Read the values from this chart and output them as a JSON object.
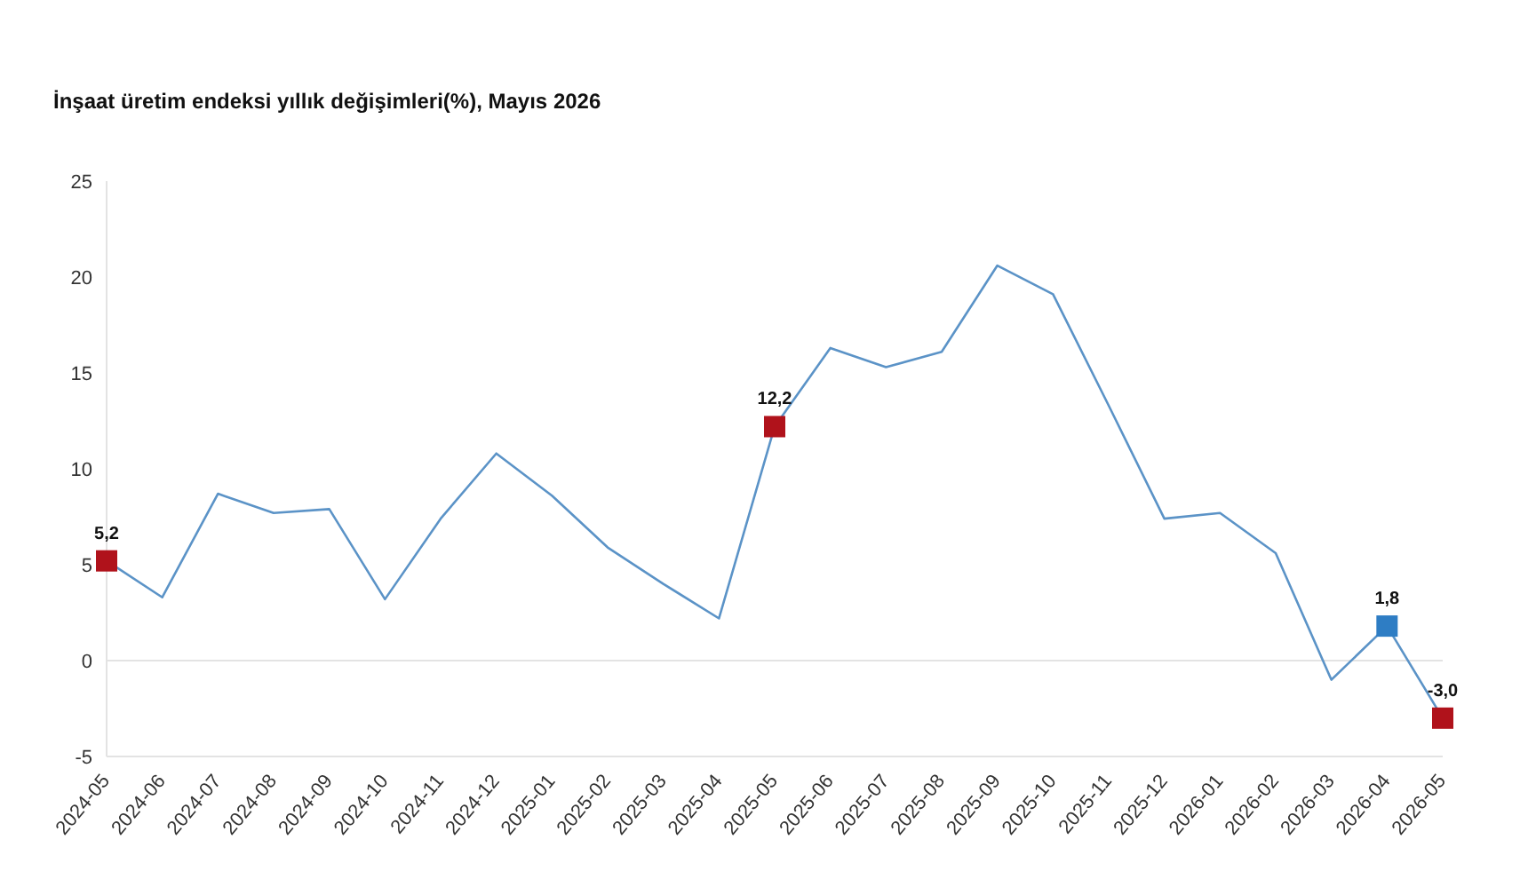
{
  "chart_data": {
    "type": "line",
    "title": "İnşaat üretim endeksi yıllık değişimleri(%), Mayıs 2026",
    "categories": [
      "2024-05",
      "2024-06",
      "2024-07",
      "2024-08",
      "2024-09",
      "2024-10",
      "2024-11",
      "2024-12",
      "2025-01",
      "2025-02",
      "2025-03",
      "2025-04",
      "2025-05",
      "2025-06",
      "2025-07",
      "2025-08",
      "2025-09",
      "2025-10",
      "2025-11",
      "2025-12",
      "2026-01",
      "2026-02",
      "2026-03",
      "2026-04",
      "2026-05"
    ],
    "series": [
      {
        "color": "#5b93c7",
        "marker": "none",
        "values": [
          5.2,
          3.3,
          8.7,
          7.7,
          7.9,
          3.2,
          7.4,
          10.8,
          8.6,
          5.9,
          4.0,
          2.2,
          12.2,
          16.3,
          15.3,
          16.1,
          20.6,
          19.1,
          13.3,
          7.4,
          7.7,
          5.6,
          -1.0,
          1.8,
          -3.0
        ]
      },
      {
        "type": "scatter",
        "marker": "square",
        "values": [
          5.2,
          null,
          null,
          null,
          null,
          null,
          null,
          null,
          null,
          null,
          null,
          null,
          12.2,
          null,
          null,
          null,
          null,
          null,
          null,
          null,
          null,
          null,
          null,
          1.8,
          -3.0
        ],
        "colors": [
          "#b0121b",
          null,
          null,
          null,
          null,
          null,
          null,
          null,
          null,
          null,
          null,
          null,
          "#b0121b",
          null,
          null,
          null,
          null,
          null,
          null,
          null,
          null,
          null,
          null,
          "#2e7dc4",
          "#b0121b"
        ],
        "value_labels": [
          "5,2",
          null,
          null,
          null,
          null,
          null,
          null,
          null,
          null,
          null,
          null,
          null,
          "12,2",
          null,
          null,
          null,
          null,
          null,
          null,
          null,
          null,
          null,
          null,
          "1,8",
          "-3,0"
        ]
      }
    ],
    "ylim": [
      -5,
      25
    ],
    "yticks": [
      -5,
      0,
      5,
      10,
      15,
      20,
      25
    ],
    "grid": false,
    "ref_lines": [
      {
        "axis": "y",
        "value": 0,
        "color": "#e3e3e3"
      }
    ]
  }
}
